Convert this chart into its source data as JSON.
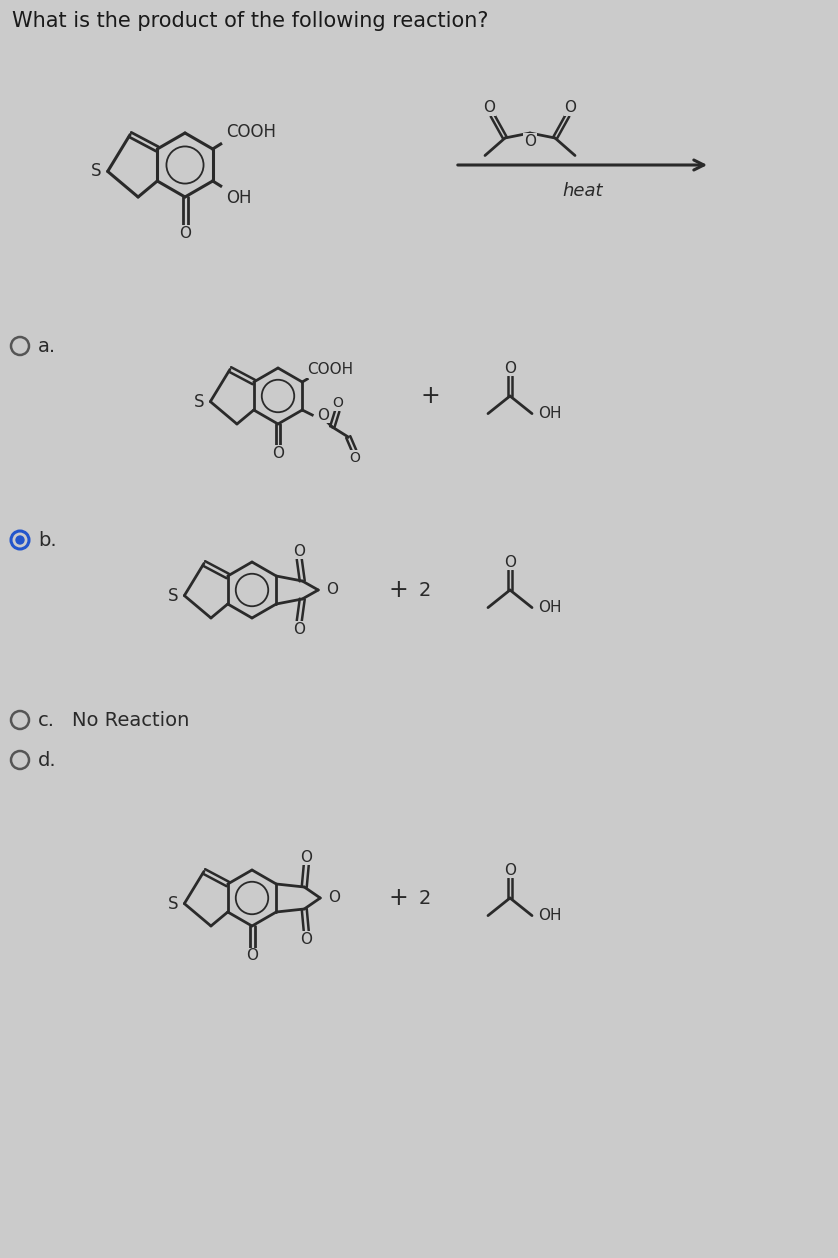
{
  "title": "What is the product of the following reaction?",
  "background_color": "#cbcbcb",
  "text_color": "#1a1a1a",
  "option_c_text": "No Reaction",
  "heat_label": "heat",
  "selected_option": "b",
  "radio_color_selected": "#2255cc",
  "radio_color_unselected": "#555555",
  "line_color": "#2a2a2a",
  "font_size_title": 15,
  "font_size_label": 14,
  "font_size_atom": 11,
  "font_size_heat": 13
}
